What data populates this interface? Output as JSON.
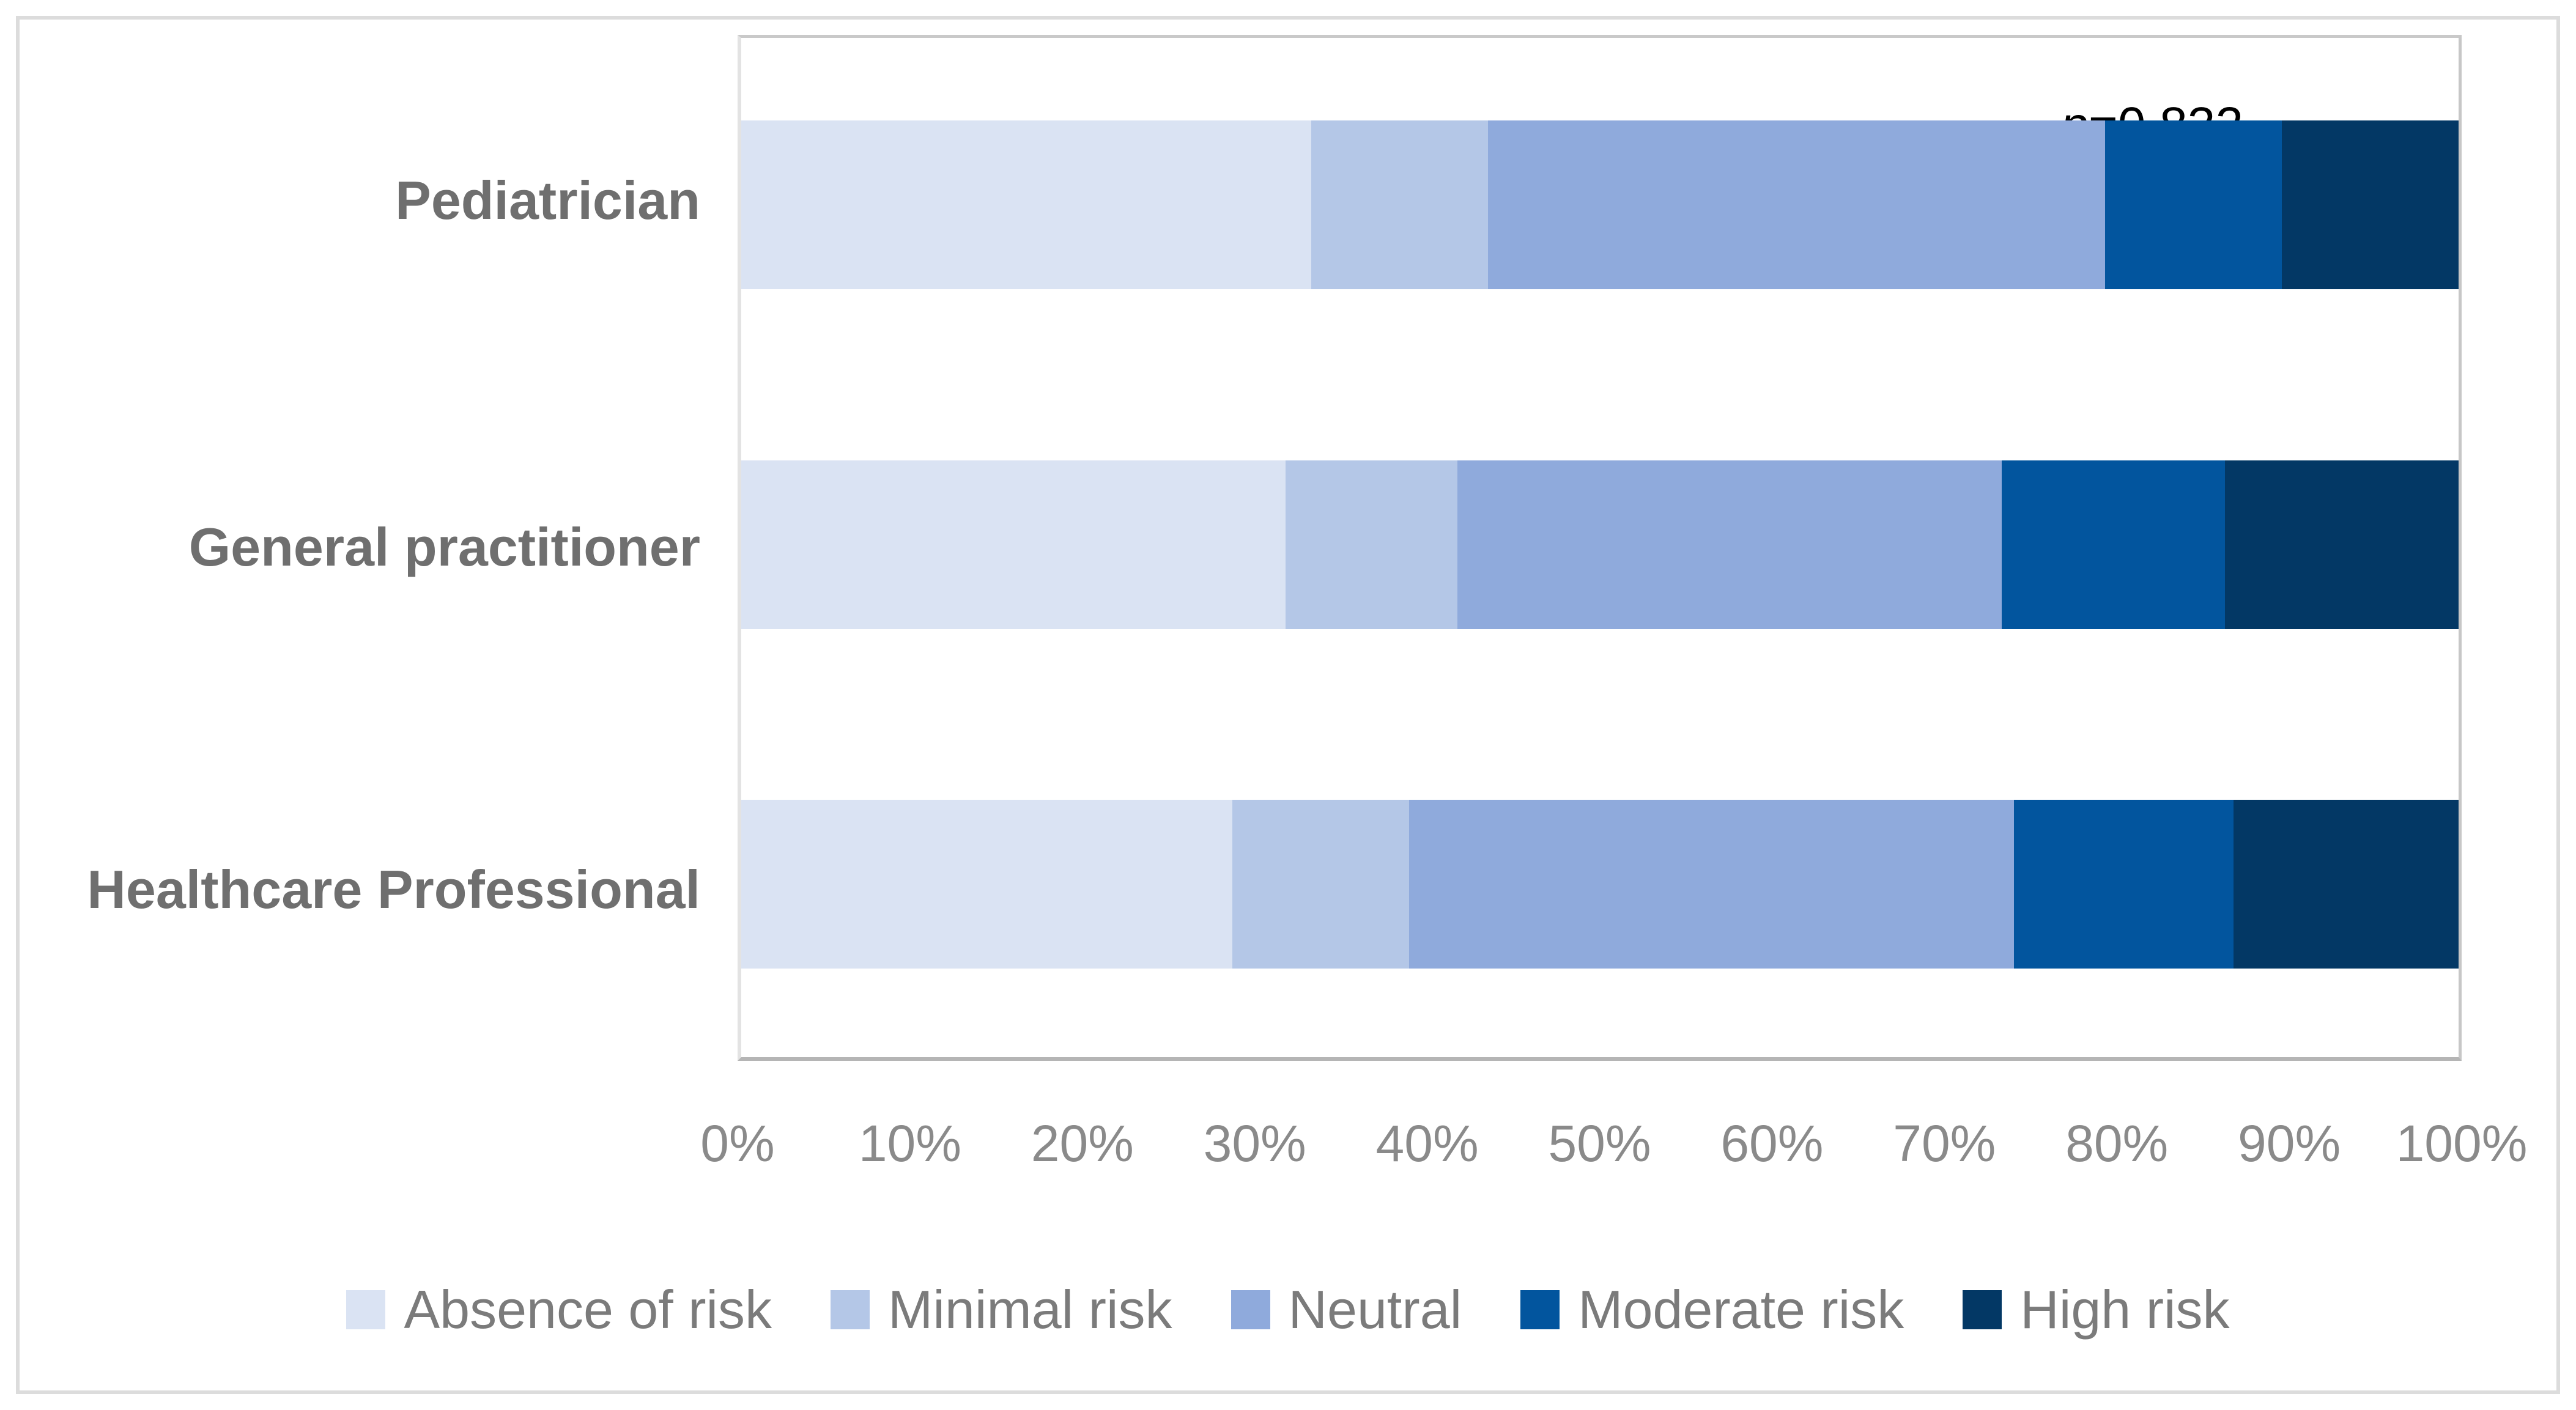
{
  "annotation": {
    "prefix_italic": "p",
    "value_text": "=0.832",
    "full": "p=0.832"
  },
  "chart_data": {
    "type": "bar",
    "orientation": "horizontal",
    "stacked": true,
    "grid": "off",
    "legend_position": "bottom",
    "annotation": "p=0.832",
    "categories": [
      "Pediatrician",
      "General practitioner",
      "Healthcare Professional"
    ],
    "series": [
      {
        "name": "Absence of risk",
        "color": "#DAE3F3",
        "values": [
          33.2,
          31.7,
          28.6
        ]
      },
      {
        "name": "Minimal risk",
        "color": "#B4C7E7",
        "values": [
          10.3,
          10.0,
          10.3
        ]
      },
      {
        "name": "Neutral",
        "color": "#8FAADC",
        "values": [
          35.9,
          31.7,
          35.2
        ]
      },
      {
        "name": "Moderate risk",
        "color": "#02559E",
        "values": [
          10.3,
          13.0,
          12.8
        ]
      },
      {
        "name": "High risk",
        "color": "#033865",
        "values": [
          10.3,
          13.6,
          13.1
        ]
      }
    ],
    "x_axis": {
      "min": 0,
      "max": 100,
      "tick_step": 10,
      "tick_labels": [
        "0%",
        "10%",
        "20%",
        "30%",
        "40%",
        "50%",
        "60%",
        "70%",
        "80%",
        "90%",
        "100%"
      ]
    },
    "colors": {
      "category_label": "#6f6f6f",
      "axis_label": "#8a8a8a",
      "legend_label": "#7b7b7b",
      "plot_border": "#c7c7c7",
      "axis_line": "#b5b5b5",
      "outer_border": "#dcdcdc"
    }
  }
}
